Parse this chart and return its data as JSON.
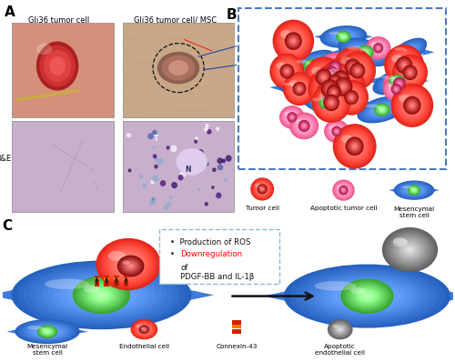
{
  "panel_A_label": "A",
  "panel_B_label": "B",
  "panel_C_label": "C",
  "title_left1": "Gli36 tumor cell",
  "title_left2": "Gli36 tumor cell/ MSC",
  "hne_label": "H&E",
  "panel_B_box_color": "#4a7bbf",
  "tumor_cell_label": "Tumor cell",
  "apoptotic_label": "Apoptotic tumor cell",
  "mesenchymal_label": "Mesencymal\nstem cell",
  "ros_text": "Production of ROS",
  "downreg_word": "Downregulation",
  "downreg_rest": " of\nPDGF-BB and IL-1β",
  "legend_msc": "Mesencymal\nstem cell",
  "legend_endo": "Endothelial cell",
  "legend_cx43": "Connexin-43",
  "legend_apo": "Apoptotic\nendothelial cell",
  "bg_color": "#ffffff",
  "box_border_color": "#88bbdd"
}
